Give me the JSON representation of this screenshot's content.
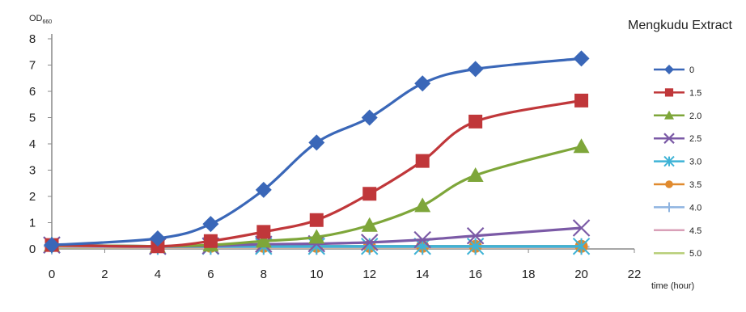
{
  "chart_data": {
    "type": "line",
    "title": "Mengkudu Extract",
    "ylabel_main": "OD",
    "ylabel_sub": "660",
    "xlabel": "time  (hour)",
    "xlim": [
      0,
      22
    ],
    "ylim": [
      0,
      8
    ],
    "x_ticks": [
      "0",
      "2",
      "4",
      "6",
      "8",
      "10",
      "12",
      "14",
      "16",
      "18",
      "20",
      "22"
    ],
    "y_ticks": [
      "0",
      "1",
      "2",
      "3",
      "4",
      "5",
      "6",
      "7",
      "8"
    ],
    "grid": false,
    "legend_position": "right",
    "series": [
      {
        "name": "0",
        "color": "#3a67b8",
        "marker": "diamond",
        "x": [
          0,
          4,
          6,
          8,
          10,
          12,
          14,
          16,
          20
        ],
        "y": [
          0.15,
          0.4,
          0.95,
          2.25,
          4.05,
          5.0,
          6.3,
          6.85,
          7.25
        ]
      },
      {
        "name": "1.5",
        "color": "#c0373a",
        "marker": "square",
        "x": [
          0,
          4,
          6,
          8,
          10,
          12,
          14,
          16,
          20
        ],
        "y": [
          0.15,
          0.1,
          0.3,
          0.65,
          1.1,
          2.1,
          3.35,
          4.85,
          5.65
        ]
      },
      {
        "name": "2.0",
        "color": "#7ea63a",
        "marker": "triangle",
        "x": [
          0,
          4,
          6,
          8,
          10,
          12,
          14,
          16,
          20
        ],
        "y": [
          0.15,
          0.1,
          0.15,
          0.3,
          0.45,
          0.9,
          1.65,
          2.8,
          3.9
        ]
      },
      {
        "name": "2.5",
        "color": "#7b5aa6",
        "marker": "x",
        "x": [
          0,
          4,
          6,
          8,
          10,
          12,
          14,
          16,
          20
        ],
        "y": [
          0.15,
          0.1,
          0.12,
          0.18,
          0.2,
          0.25,
          0.35,
          0.5,
          0.8
        ]
      },
      {
        "name": "3.0",
        "color": "#3fb3d6",
        "marker": "star",
        "x": [
          0,
          4,
          6,
          8,
          10,
          12,
          14,
          16,
          20
        ],
        "y": [
          0.15,
          0.1,
          0.1,
          0.1,
          0.1,
          0.1,
          0.1,
          0.1,
          0.1
        ]
      },
      {
        "name": "3.5",
        "color": "#e08a2e",
        "marker": "circle",
        "x": [
          0,
          4,
          6,
          8,
          10,
          12,
          14,
          16,
          20
        ],
        "y": [
          0.12,
          0.1,
          0.1,
          0.1,
          0.1,
          0.1,
          0.1,
          0.1,
          0.1
        ]
      },
      {
        "name": "4.0",
        "color": "#8fb4e0",
        "marker": "plus",
        "x": [
          0,
          4,
          6,
          8,
          10,
          12,
          14,
          16,
          20
        ],
        "y": [
          0.1,
          0.08,
          0.08,
          0.08,
          0.08,
          0.08,
          0.08,
          0.08,
          0.08
        ]
      },
      {
        "name": "4.5",
        "color": "#d9a0b8",
        "marker": "none",
        "x": [
          0,
          4,
          6,
          8,
          10,
          12,
          14,
          16,
          20
        ],
        "y": [
          0.08,
          0.06,
          0.06,
          0.06,
          0.06,
          0.06,
          0.06,
          0.06,
          0.06
        ]
      },
      {
        "name": "5.0",
        "color": "#b8cf7a",
        "marker": "none",
        "x": [
          0,
          4,
          6,
          8,
          10,
          12,
          14,
          16,
          20
        ],
        "y": [
          0.06,
          0.05,
          0.05,
          0.05,
          0.05,
          0.05,
          0.05,
          0.05,
          0.05
        ]
      }
    ]
  }
}
